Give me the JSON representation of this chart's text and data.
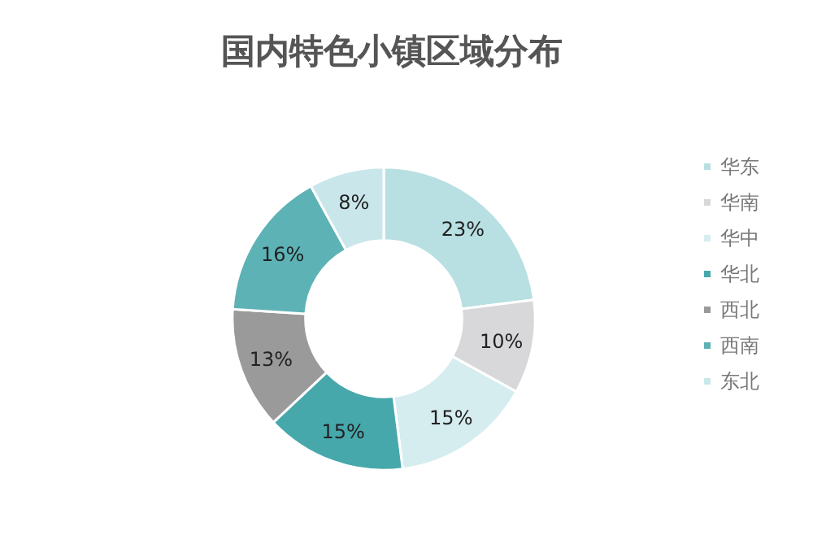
{
  "chart_data": {
    "type": "donut",
    "title": "国内特色小镇区域分布",
    "categories": [
      "华东",
      "华南",
      "华中",
      "华北",
      "西北",
      "西南",
      "东北"
    ],
    "values": [
      23,
      10,
      15,
      15,
      13,
      16,
      8
    ],
    "value_labels": [
      "23%",
      "10%",
      "15%",
      "15%",
      "13%",
      "16%",
      "8%"
    ],
    "colors": [
      "#b8dfe2",
      "#d8d7da",
      "#d6edf0",
      "#47a8ac",
      "#9a9a9a",
      "#5db2b5",
      "#c9e7ea"
    ],
    "legend": "right"
  }
}
